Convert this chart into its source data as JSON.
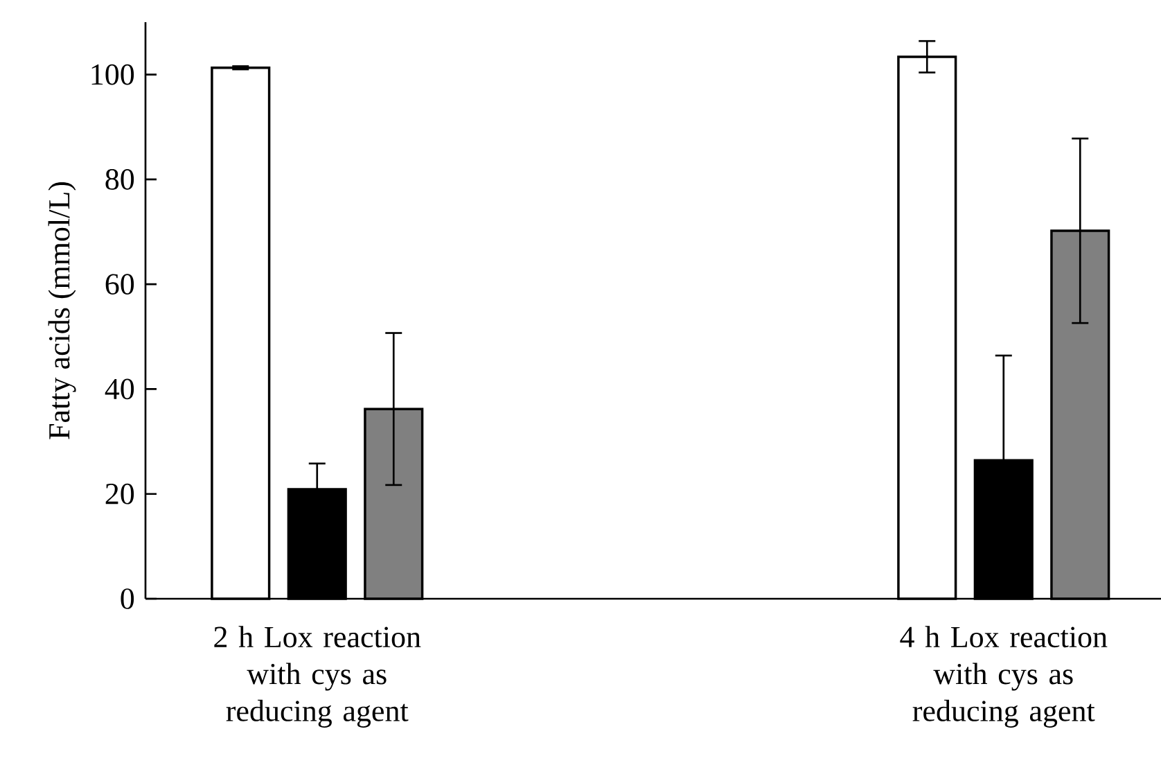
{
  "chart_data": {
    "type": "bar",
    "ylabel": "Fatty acids (mmol/L)",
    "categories": [
      "2 h Lox reaction with cys as reducing agent",
      null,
      "4 h Lox reaction with cys as reducing agent"
    ],
    "series": [
      {
        "color": "#ffffff",
        "values": [
          101.3,
          null,
          103.4
        ],
        "errors": [
          0.3,
          null,
          3
        ]
      },
      {
        "color": "#000000",
        "values": [
          20.9,
          null,
          26.4
        ],
        "errors": [
          4.9,
          null,
          20
        ]
      },
      {
        "color": "#808080",
        "values": [
          36.2,
          null,
          70.2
        ],
        "errors": [
          14.5,
          null,
          17.6
        ]
      }
    ],
    "ylim": [
      0,
      110
    ],
    "yticks": [
      0,
      20,
      40,
      60,
      80,
      100
    ],
    "grid": false
  }
}
